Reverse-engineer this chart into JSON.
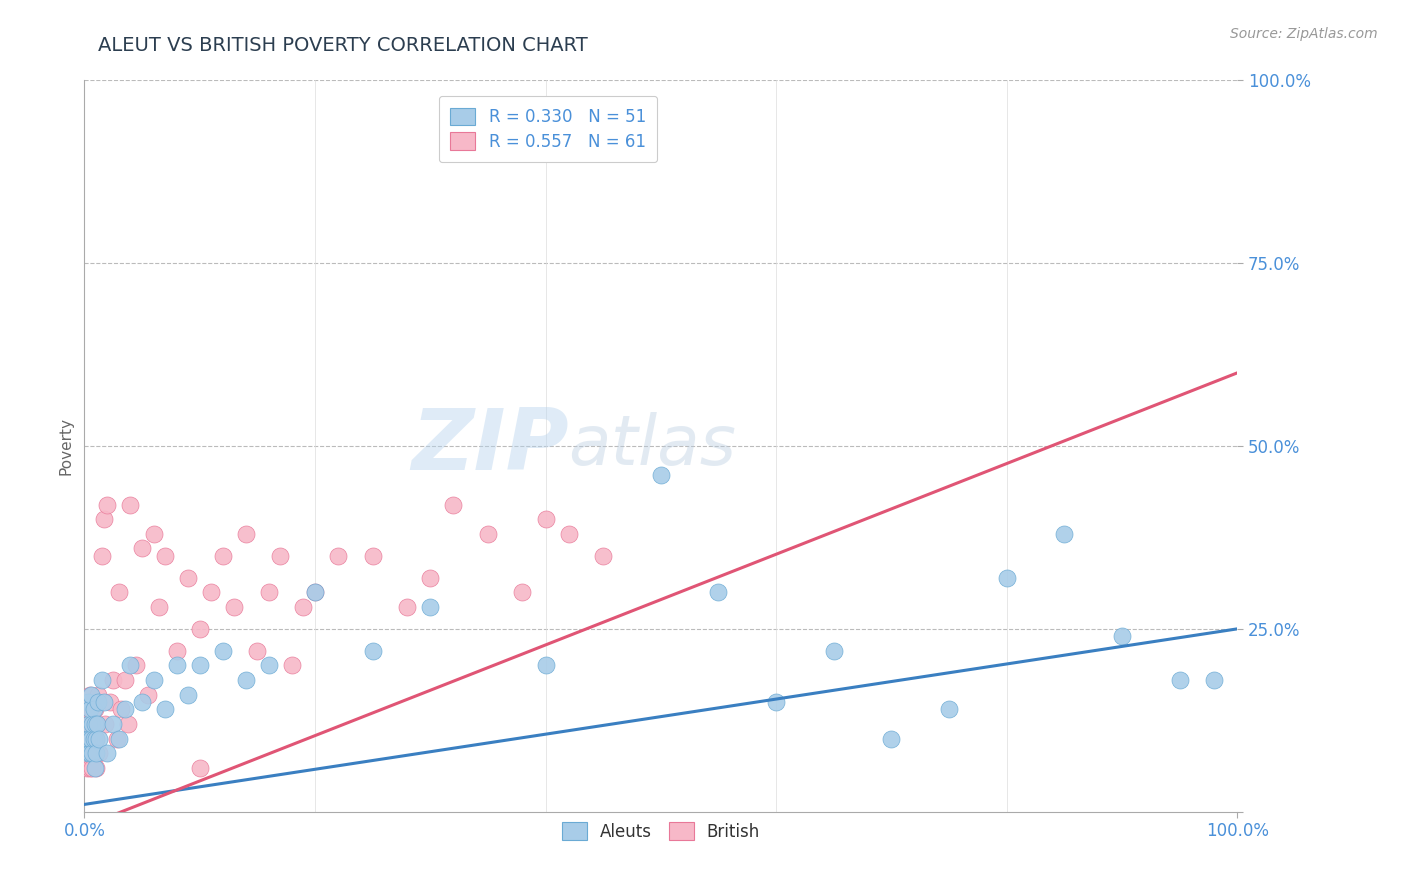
{
  "title": "ALEUT VS BRITISH POVERTY CORRELATION CHART",
  "source_text": "Source: ZipAtlas.com",
  "ylabel": "Poverty",
  "watermark_zip": "ZIP",
  "watermark_atlas": "atlas",
  "aleut_R": 0.33,
  "aleut_N": 51,
  "british_R": 0.557,
  "british_N": 61,
  "aleut_color": "#a8cce8",
  "aleut_edge_color": "#6aaad4",
  "british_color": "#f7b8c8",
  "british_edge_color": "#e87898",
  "aleut_line_color": "#3a7fc1",
  "british_line_color": "#e05575",
  "bg_color": "#ffffff",
  "grid_color": "#bbbbbb",
  "title_color": "#2c3e50",
  "axis_label_color": "#4a90d9",
  "aleut_line_start_y": 0.01,
  "aleut_line_end_y": 0.25,
  "british_line_start_y": -0.02,
  "british_line_end_y": 0.6,
  "aleut_x": [
    0.002,
    0.003,
    0.003,
    0.004,
    0.004,
    0.005,
    0.005,
    0.006,
    0.006,
    0.007,
    0.007,
    0.008,
    0.008,
    0.009,
    0.009,
    0.01,
    0.01,
    0.011,
    0.012,
    0.013,
    0.015,
    0.017,
    0.02,
    0.025,
    0.03,
    0.035,
    0.04,
    0.05,
    0.06,
    0.07,
    0.08,
    0.09,
    0.1,
    0.12,
    0.14,
    0.16,
    0.2,
    0.25,
    0.3,
    0.4,
    0.5,
    0.55,
    0.6,
    0.65,
    0.7,
    0.75,
    0.8,
    0.85,
    0.9,
    0.95,
    0.98
  ],
  "aleut_y": [
    0.1,
    0.08,
    0.15,
    0.12,
    0.1,
    0.14,
    0.08,
    0.16,
    0.1,
    0.12,
    0.08,
    0.1,
    0.14,
    0.06,
    0.12,
    0.1,
    0.08,
    0.12,
    0.15,
    0.1,
    0.18,
    0.15,
    0.08,
    0.12,
    0.1,
    0.14,
    0.2,
    0.15,
    0.18,
    0.14,
    0.2,
    0.16,
    0.2,
    0.22,
    0.18,
    0.2,
    0.3,
    0.22,
    0.28,
    0.2,
    0.46,
    0.3,
    0.15,
    0.22,
    0.1,
    0.14,
    0.32,
    0.38,
    0.24,
    0.18,
    0.18
  ],
  "british_x": [
    0.002,
    0.003,
    0.003,
    0.004,
    0.004,
    0.005,
    0.005,
    0.006,
    0.006,
    0.007,
    0.007,
    0.008,
    0.008,
    0.009,
    0.01,
    0.01,
    0.011,
    0.012,
    0.013,
    0.015,
    0.017,
    0.018,
    0.02,
    0.022,
    0.025,
    0.028,
    0.03,
    0.032,
    0.035,
    0.038,
    0.04,
    0.045,
    0.05,
    0.055,
    0.06,
    0.065,
    0.07,
    0.08,
    0.09,
    0.1,
    0.11,
    0.12,
    0.13,
    0.14,
    0.15,
    0.16,
    0.17,
    0.18,
    0.19,
    0.2,
    0.22,
    0.25,
    0.28,
    0.3,
    0.32,
    0.35,
    0.38,
    0.4,
    0.42,
    0.45,
    0.1
  ],
  "british_y": [
    0.06,
    0.1,
    0.14,
    0.08,
    0.12,
    0.16,
    0.06,
    0.12,
    0.08,
    0.14,
    0.06,
    0.1,
    0.08,
    0.14,
    0.1,
    0.06,
    0.12,
    0.16,
    0.08,
    0.35,
    0.4,
    0.12,
    0.42,
    0.15,
    0.18,
    0.1,
    0.3,
    0.14,
    0.18,
    0.12,
    0.42,
    0.2,
    0.36,
    0.16,
    0.38,
    0.28,
    0.35,
    0.22,
    0.32,
    0.25,
    0.3,
    0.35,
    0.28,
    0.38,
    0.22,
    0.3,
    0.35,
    0.2,
    0.28,
    0.3,
    0.35,
    0.35,
    0.28,
    0.32,
    0.42,
    0.38,
    0.3,
    0.4,
    0.38,
    0.35,
    0.06
  ],
  "ytick_positions": [
    0.0,
    0.25,
    0.5,
    0.75,
    1.0
  ],
  "ytick_labels": [
    "",
    "25.0%",
    "50.0%",
    "75.0%",
    "100.0%"
  ],
  "xtick_positions": [
    0.0,
    1.0
  ],
  "xtick_labels": [
    "0.0%",
    "100.0%"
  ]
}
